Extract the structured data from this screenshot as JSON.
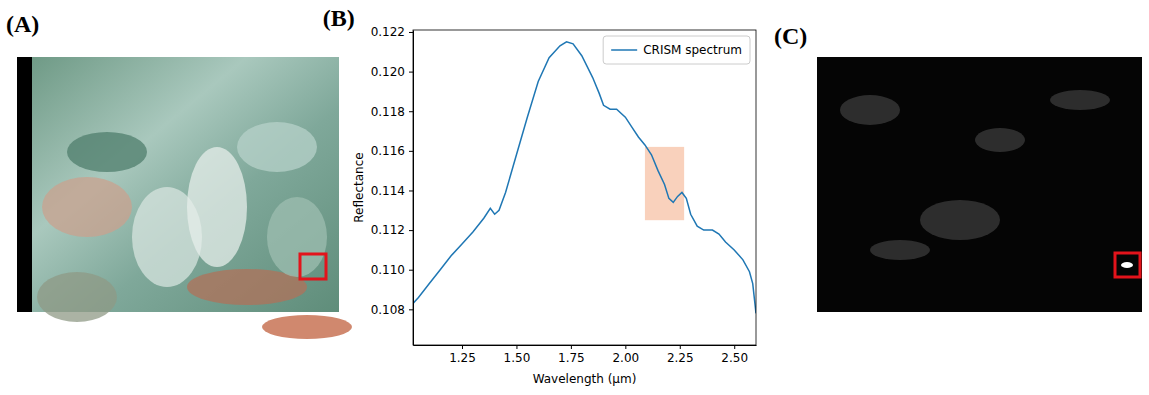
{
  "panel_labels": [
    "(A)",
    "(B)",
    "(C)"
  ],
  "chart_data": {
    "type": "line",
    "x_label": "Wavelength (μm)",
    "y_label": "Reflectance",
    "x": [
      1.025,
      1.05,
      1.1,
      1.15,
      1.2,
      1.25,
      1.3,
      1.35,
      1.38,
      1.4,
      1.42,
      1.45,
      1.5,
      1.55,
      1.6,
      1.65,
      1.7,
      1.73,
      1.76,
      1.8,
      1.85,
      1.88,
      1.9,
      1.93,
      1.96,
      2.0,
      2.03,
      2.06,
      2.09,
      2.12,
      2.15,
      2.18,
      2.2,
      2.22,
      2.24,
      2.26,
      2.28,
      2.3,
      2.33,
      2.36,
      2.4,
      2.43,
      2.46,
      2.5,
      2.54,
      2.57,
      2.585,
      2.6
    ],
    "series": [
      {
        "name": "CRISM spectrum",
        "color": "#1f77b4",
        "values": [
          0.1083,
          0.1086,
          0.1093,
          0.11,
          0.1107,
          0.1113,
          0.1119,
          0.1126,
          0.1131,
          0.1128,
          0.113,
          0.1139,
          0.1158,
          0.1177,
          0.1195,
          0.1207,
          0.1213,
          0.1215,
          0.1214,
          0.1208,
          0.1197,
          0.1189,
          0.1183,
          0.1181,
          0.1181,
          0.1177,
          0.1172,
          0.1167,
          0.1163,
          0.1158,
          0.115,
          0.1143,
          0.1136,
          0.1134,
          0.1137,
          0.1139,
          0.1136,
          0.1128,
          0.1122,
          0.112,
          0.112,
          0.1118,
          0.1114,
          0.111,
          0.1105,
          0.1099,
          0.1093,
          0.1078
        ]
      }
    ],
    "xlim": [
      1.025,
      2.6
    ],
    "ylim": [
      0.1062,
      0.1221
    ],
    "xticks": [
      1.25,
      {
        "value": 1.5,
        "label": "1.50"
      },
      1.75,
      {
        "value": 2.0,
        "label": "2.00"
      },
      2.25,
      {
        "value": 2.5,
        "label": "2.50"
      }
    ],
    "yticks": [
      0.108,
      {
        "value": 0.11,
        "label": "0.110"
      },
      0.112,
      0.114,
      0.116,
      0.118,
      {
        "value": 0.12,
        "label": "0.120"
      },
      0.122
    ],
    "highlight": {
      "x": [
        2.09,
        2.27
      ],
      "y": [
        0.1125,
        0.1162
      ],
      "color": "#f8c9b0"
    },
    "legend": "upper right",
    "grid": false
  }
}
